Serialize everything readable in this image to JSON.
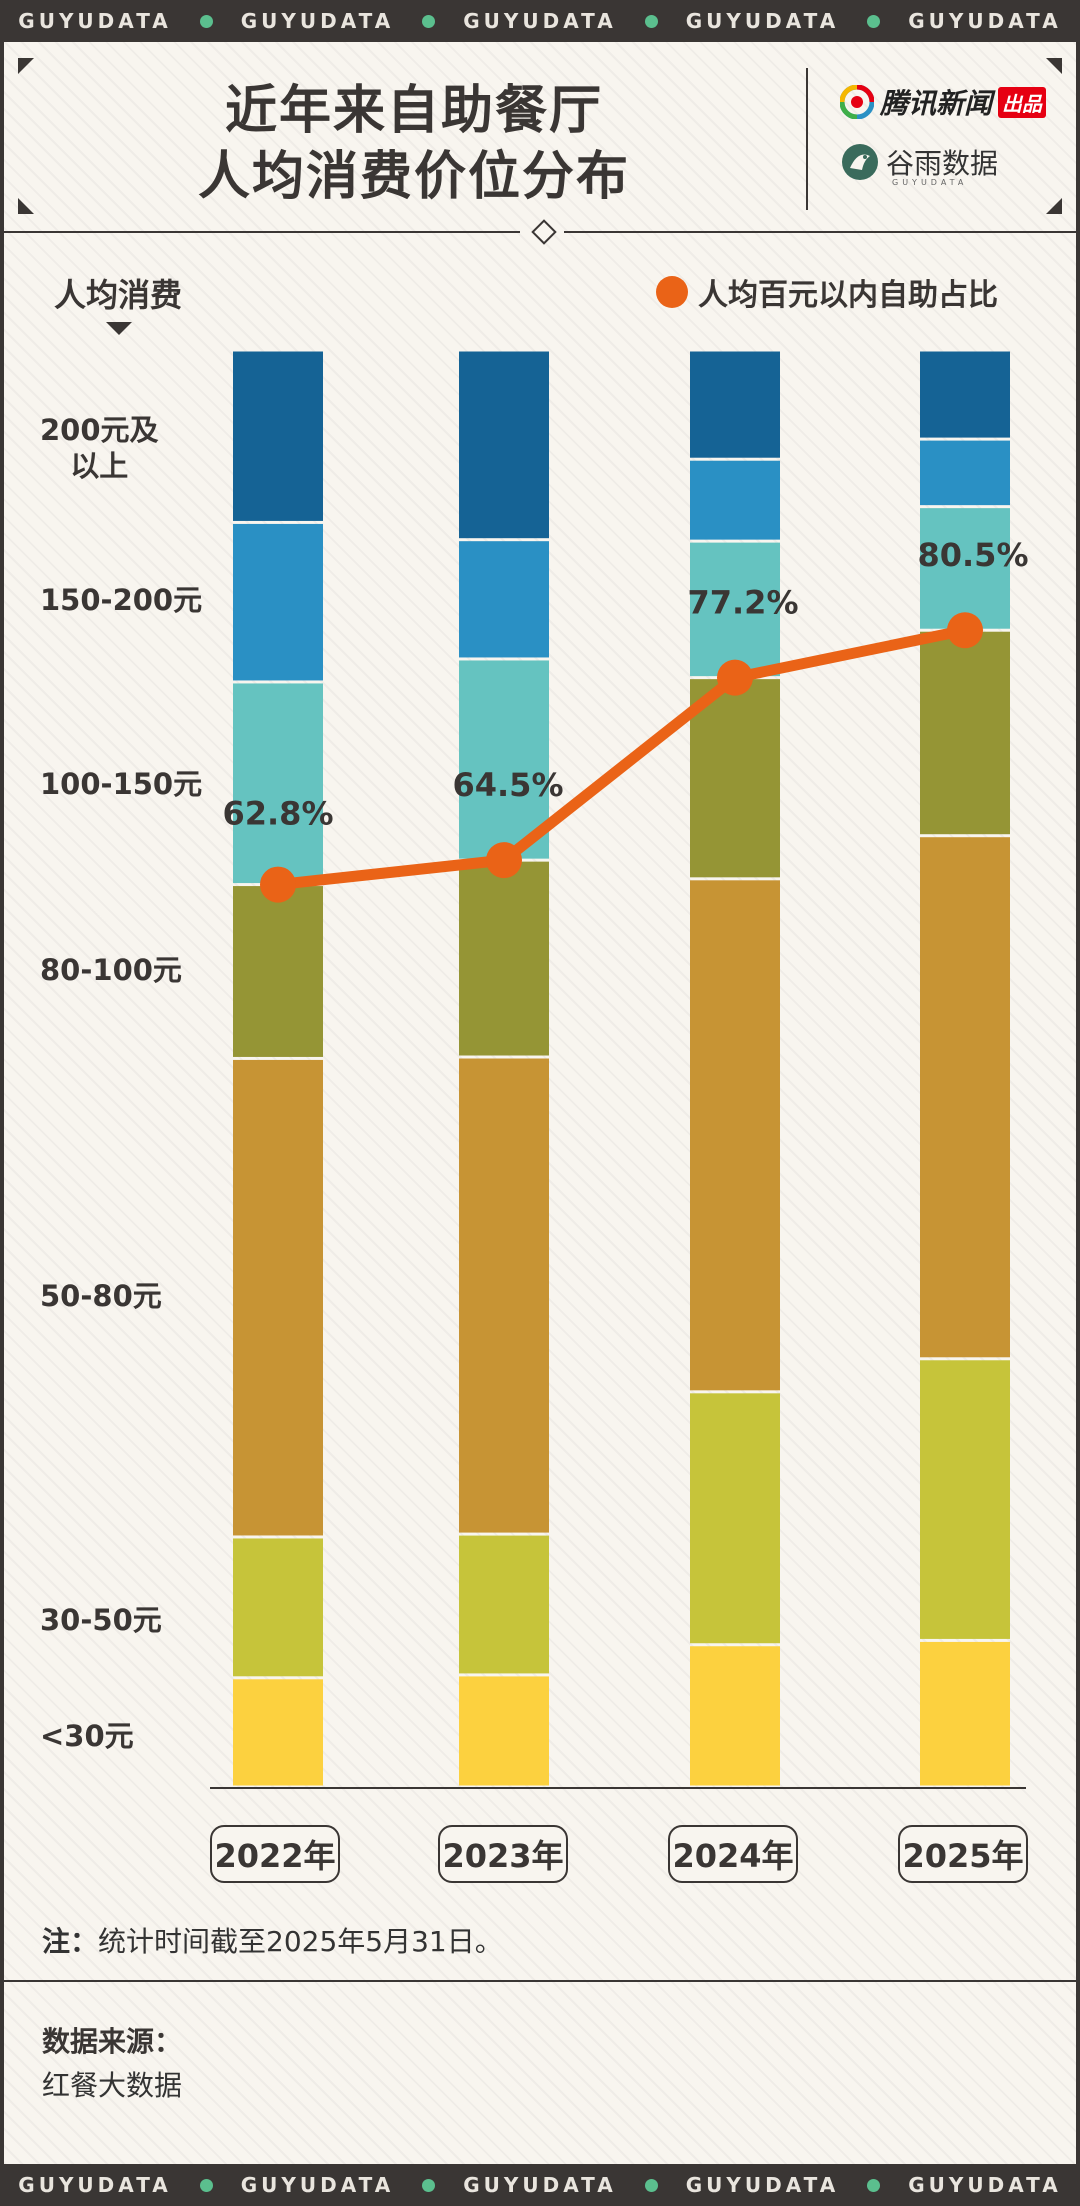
{
  "band": {
    "text": "GUYUDATA",
    "repeat": 5
  },
  "header": {
    "title_line1": "近年来自助餐厅",
    "title_line2": "人均消费价位分布",
    "logo_tencent": "腾讯新闻",
    "logo_tencent_badge": "出品",
    "logo_guyu": "谷雨数据",
    "logo_guyu_sub": "GUYUDATA"
  },
  "colors": {
    "c200": "#156395",
    "c150": "#2a90c4",
    "c100": "#65c3c0",
    "c80": "#959535",
    "c50": "#c79434",
    "c30": "#c6c43a",
    "c0": "#fcd13f",
    "line": "#ea6317"
  },
  "chart_data": {
    "type": "bar",
    "stacked": true,
    "title": "近年来自助餐厅人均消费价位分布",
    "ylabel": "人均消费",
    "categories": [
      "2022年",
      "2023年",
      "2024年",
      "2025年"
    ],
    "series": [
      {
        "name": "<30元",
        "color_key": "c0",
        "values": [
          7.6,
          7.8,
          9.9,
          10.2
        ]
      },
      {
        "name": "30-50元",
        "color_key": "c30",
        "values": [
          9.8,
          9.8,
          17.6,
          19.6
        ]
      },
      {
        "name": "50-80元",
        "color_key": "c50",
        "values": [
          33.3,
          33.2,
          35.7,
          36.4
        ]
      },
      {
        "name": "80-100元",
        "color_key": "c80",
        "values": [
          12.1,
          13.7,
          14.0,
          14.3
        ]
      },
      {
        "name": "100-150元",
        "color_key": "c100",
        "values": [
          14.1,
          14.0,
          9.5,
          8.6
        ]
      },
      {
        "name": "150-200元",
        "color_key": "c150",
        "values": [
          11.1,
          8.3,
          5.7,
          4.7
        ]
      },
      {
        "name": "200元及以上",
        "color_key": "c200",
        "values": [
          12.0,
          13.2,
          7.6,
          6.2
        ]
      }
    ],
    "line_series": {
      "name": "人均百元以内自助占比",
      "values": [
        62.8,
        64.5,
        77.2,
        80.5
      ],
      "labels": [
        "62.8%",
        "64.5%",
        "77.2%",
        "80.5%"
      ]
    },
    "ylim": [
      0,
      100
    ],
    "category_labels": [
      "200元及\n以上",
      "150-200元",
      "100-150元",
      "80-100元",
      "50-80元",
      "30-50元",
      "<30元"
    ]
  },
  "legend": {
    "label": "人均百元以内自助占比"
  },
  "y_title": "人均消费",
  "labels": {
    "cat200a": "200元及",
    "cat200b": "以上",
    "cat150": "150-200元",
    "cat100": "100-150元",
    "cat80": "80-100元",
    "cat50": "50-80元",
    "cat30": "30-50元",
    "cat0": "<30元"
  },
  "note": {
    "prefix": "注：",
    "text": "统计时间截至2025年5月31日。"
  },
  "source": {
    "title": "数据来源：",
    "text": "红餐大数据"
  }
}
